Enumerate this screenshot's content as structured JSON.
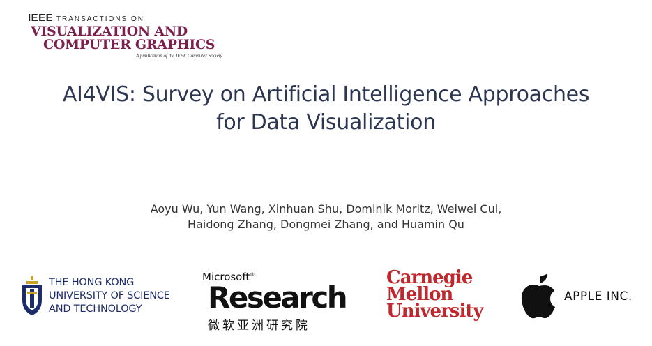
{
  "journal": {
    "ieee": "IEEE",
    "transactions_on": "TRANSACTIONS ON",
    "line2": "VISUALIZATION AND",
    "line3": "COMPUTER GRAPHICS",
    "publication_note": "A publication of the IEEE Computer Society"
  },
  "title": {
    "line1": "AI4VIS: Survey on Artificial Intelligence Approaches",
    "line2": "for Data Visualization"
  },
  "authors": {
    "line1": "Aoyu Wu, Yun Wang, Xinhuan Shu, Dominik Moritz, Weiwei Cui,",
    "line2": "Haidong Zhang, Dongmei Zhang, and Huamin Qu"
  },
  "affiliations": {
    "hkust": {
      "line1": "THE HONG KONG",
      "line2": "UNIVERSITY OF SCIENCE",
      "line3": "AND TECHNOLOGY"
    },
    "msr": {
      "microsoft": "Microsoft",
      "research": "Research",
      "chinese": "微软亚洲研究院"
    },
    "cmu": {
      "line1": "Carnegie",
      "line2": "Mellon",
      "line3": "University"
    },
    "apple": {
      "name": "APPLE INC."
    }
  },
  "colors": {
    "title": "#2d3651",
    "journal_accent": "#7d1f4e",
    "hkust_blue": "#1d2d6b",
    "hkust_gold": "#c9a227",
    "cmu_red": "#c0282d"
  }
}
